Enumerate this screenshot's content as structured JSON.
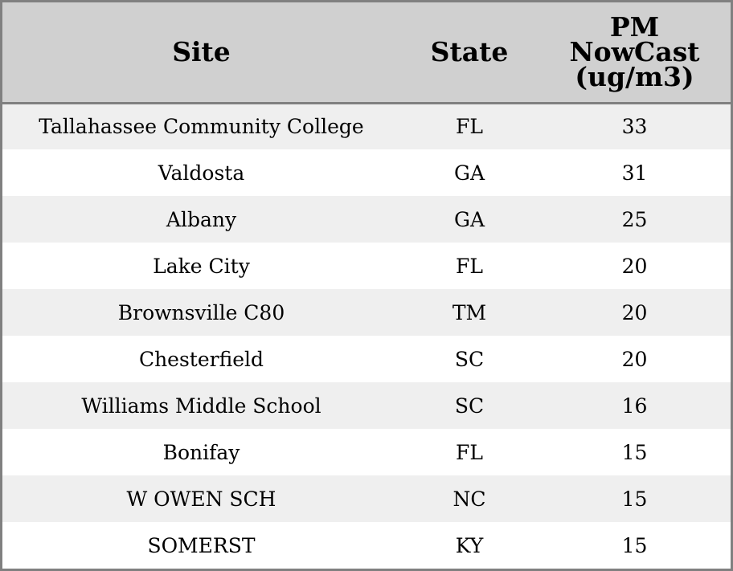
{
  "chart_data": {
    "type": "table",
    "columns": [
      "Site",
      "State",
      "PM NowCast (ug/m3)"
    ],
    "header_lines": {
      "site": "Site",
      "state": "State",
      "pm": [
        "PM",
        "NowCast",
        "(ug/m3)"
      ]
    },
    "rows": [
      {
        "site": "Tallahassee Community College",
        "state": "FL",
        "pm": "33"
      },
      {
        "site": "Valdosta",
        "state": "GA",
        "pm": "31"
      },
      {
        "site": "Albany",
        "state": "GA",
        "pm": "25"
      },
      {
        "site": "Lake City",
        "state": "FL",
        "pm": "20"
      },
      {
        "site": "Brownsville C80",
        "state": "TM",
        "pm": "20"
      },
      {
        "site": "Chesterfield",
        "state": "SC",
        "pm": "20"
      },
      {
        "site": "Williams Middle School",
        "state": "SC",
        "pm": "16"
      },
      {
        "site": "Bonifay",
        "state": "FL",
        "pm": "15"
      },
      {
        "site": "W OWEN SCH",
        "state": "NC",
        "pm": "15"
      },
      {
        "site": "SOMERST",
        "state": "KY",
        "pm": "15"
      }
    ]
  },
  "colors": {
    "header_bg": "#d0d0d0",
    "row_stripe": "#efefef",
    "row_plain": "#ffffff",
    "border": "#808080",
    "text": "#000000"
  }
}
